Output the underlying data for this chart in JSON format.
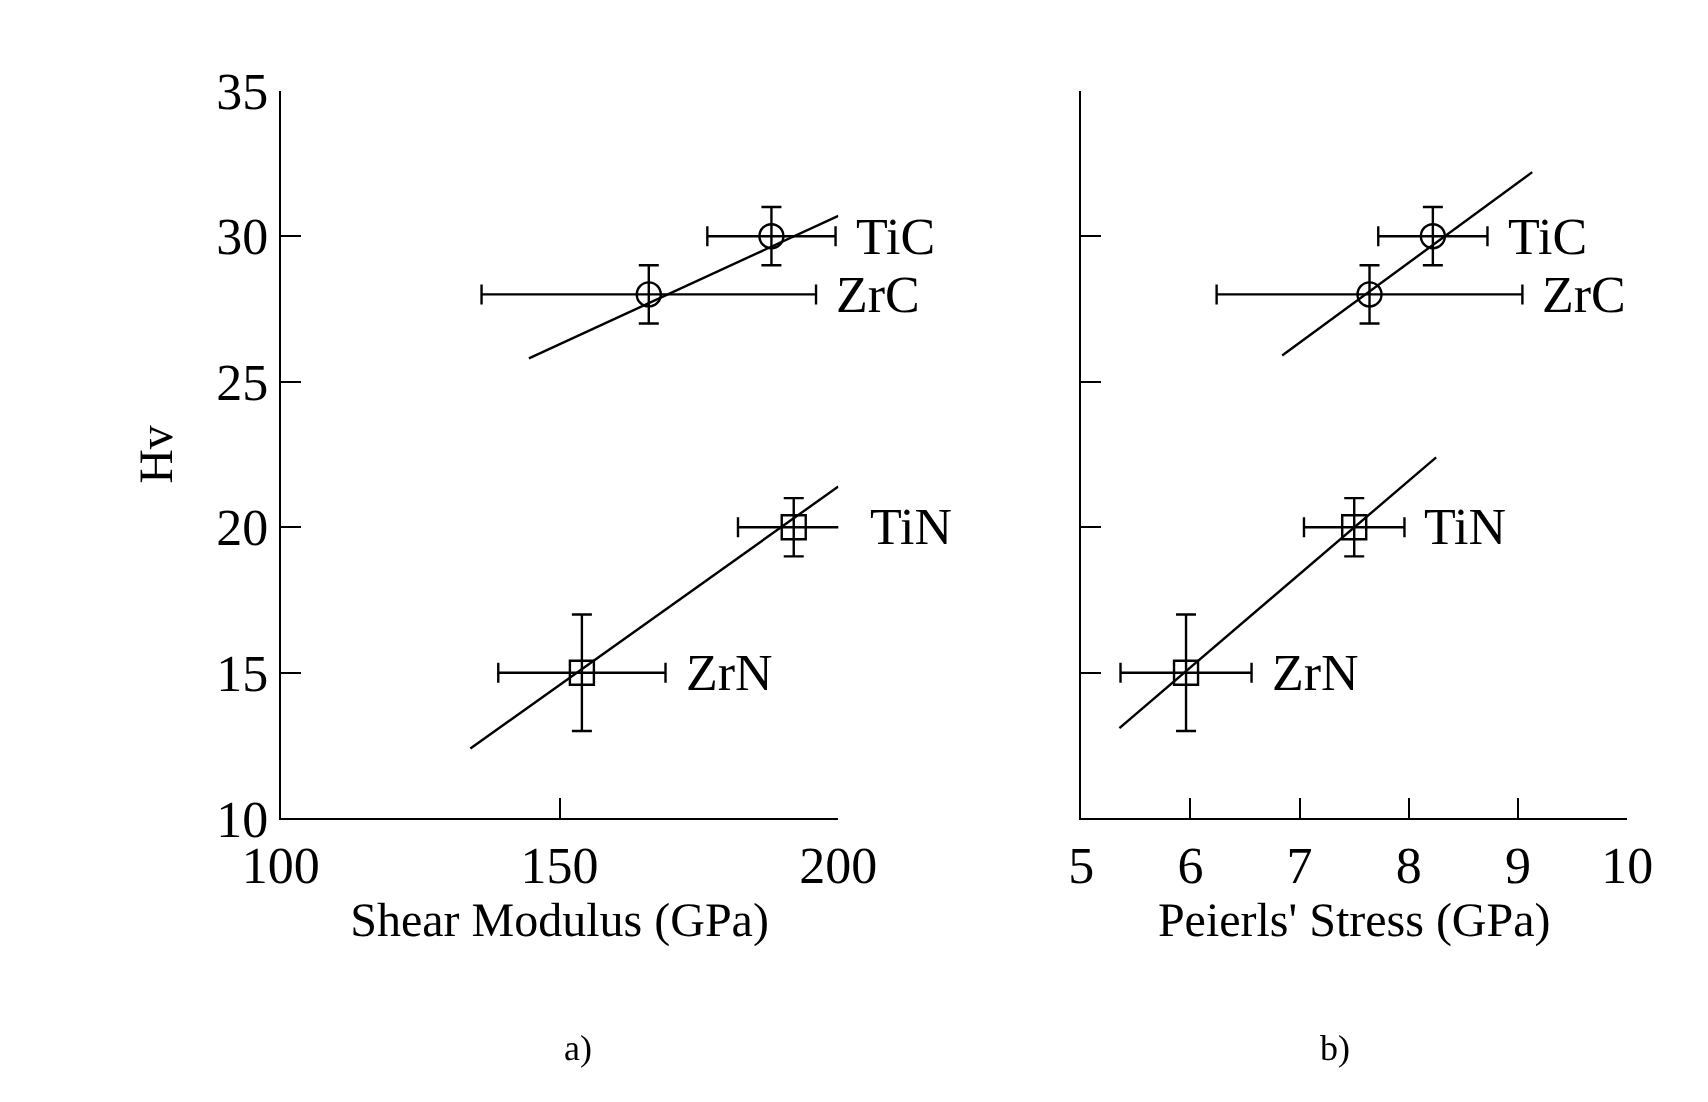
{
  "chart_data": [
    {
      "type": "scatter",
      "xlabel": "Shear Modulus (GPa)",
      "ylabel": "Hv",
      "xlim": [
        100,
        200
      ],
      "xticks": [
        100,
        150,
        200
      ],
      "ylim": [
        10,
        35
      ],
      "yticks": [
        10,
        15,
        20,
        25,
        30,
        35
      ],
      "annotations": [
        "a)"
      ],
      "series": [
        {
          "name": "TiC",
          "color": "#000000",
          "marker": "circle",
          "x": [
            188
          ],
          "values": [
            30
          ],
          "errors": [
            1
          ],
          "xerrors": [
            11.5
          ]
        },
        {
          "name": "ZrC",
          "color": "#000000",
          "marker": "circle",
          "x": [
            166
          ],
          "values": [
            28
          ],
          "errors": [
            1
          ],
          "xerrors": [
            30
          ]
        },
        {
          "name": "TiN",
          "color": "#000000",
          "marker": "square",
          "x": [
            192
          ],
          "values": [
            20
          ],
          "errors": [
            1
          ],
          "xerrors": [
            10
          ]
        },
        {
          "name": "ZrN",
          "color": "#000000",
          "marker": "square",
          "x": [
            154
          ],
          "values": [
            15
          ],
          "errors": [
            2
          ],
          "xerrors": [
            15
          ]
        },
        {
          "type": "line",
          "color": "#000000",
          "x": [
            144.5,
            200
          ],
          "values": [
            25.8,
            30.7
          ]
        },
        {
          "type": "line",
          "color": "#000000",
          "x": [
            134,
            200
          ],
          "values": [
            12.4,
            21.4
          ]
        }
      ]
    },
    {
      "type": "scatter",
      "xlabel": "Peierls' Stress (GPa)",
      "xlim": [
        5,
        10
      ],
      "xticks": [
        5,
        6,
        7,
        8,
        9,
        10
      ],
      "ylim": [
        10,
        35
      ],
      "yticks": [
        10,
        15,
        20,
        25,
        30,
        35
      ],
      "tick_labels": "x",
      "annotations": [
        "b)"
      ],
      "series": [
        {
          "name": "TiC",
          "color": "#000000",
          "marker": "circle",
          "x": [
            8.22
          ],
          "values": [
            30
          ],
          "errors": [
            1
          ],
          "xerrors": [
            0.5
          ]
        },
        {
          "name": "ZrC",
          "color": "#000000",
          "marker": "circle",
          "x": [
            7.64
          ],
          "values": [
            28
          ],
          "errors": [
            1
          ],
          "xerrors": [
            1.4
          ]
        },
        {
          "name": "TiN",
          "color": "#000000",
          "marker": "square",
          "x": [
            7.5
          ],
          "values": [
            20
          ],
          "errors": [
            1
          ],
          "xerrors": [
            0.46
          ]
        },
        {
          "name": "ZrN",
          "color": "#000000",
          "marker": "square",
          "x": [
            5.96
          ],
          "values": [
            15
          ],
          "errors": [
            2
          ],
          "xerrors": [
            0.6
          ]
        },
        {
          "type": "line",
          "color": "#000000",
          "x": [
            6.84,
            9.13
          ],
          "values": [
            25.9,
            32.2
          ]
        },
        {
          "type": "line",
          "color": "#000000",
          "x": [
            5.35,
            8.25
          ],
          "values": [
            13.1,
            22.4
          ]
        }
      ]
    }
  ]
}
